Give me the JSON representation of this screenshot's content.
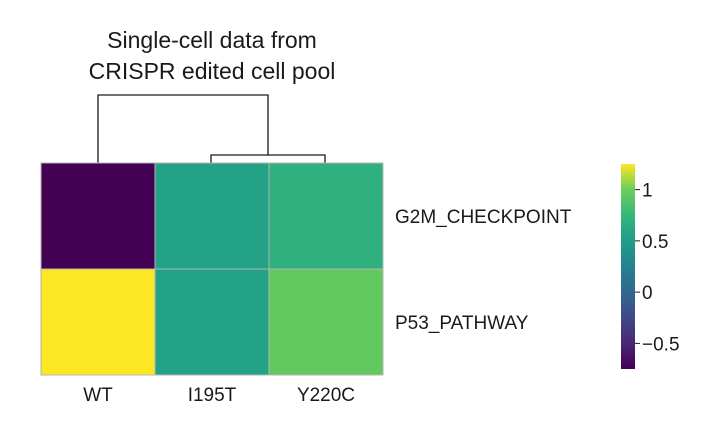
{
  "chart_data": {
    "type": "heatmap",
    "title": "Single-cell data from CRISPR edited cell pool",
    "title_lines": [
      "Single-cell data from",
      "CRISPR edited cell pool"
    ],
    "columns": [
      "WT",
      "I195T",
      "Y220C"
    ],
    "rows": [
      "G2M_CHECKPOINT",
      "P53_PATHWAY"
    ],
    "values": [
      [
        -0.75,
        0.55,
        0.68
      ],
      [
        1.25,
        0.55,
        0.95
      ]
    ],
    "colorbar": {
      "colormap": "viridis",
      "vmin": -0.75,
      "vmax": 1.25,
      "ticks": [
        1,
        0.5,
        0,
        -0.5
      ],
      "tick_labels": [
        "1",
        "0.5",
        "0",
        "−0.5"
      ]
    },
    "dendrogram": {
      "position": "top",
      "structure": "((I195T, Y220C), WT)"
    },
    "grid": false
  }
}
